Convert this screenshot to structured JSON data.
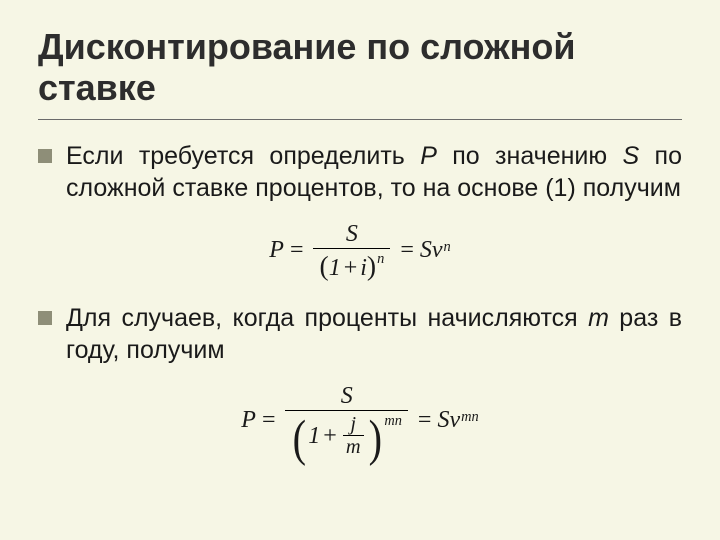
{
  "colors": {
    "background": "#f6f6e5",
    "text": "#1a1a1a",
    "bullet": "#8e8e78",
    "rule": "#6a6a6a"
  },
  "typography": {
    "title_fontsize": 36,
    "body_fontsize": 25,
    "formula_fontsize": 24,
    "title_weight": "bold",
    "body_font": "Arial",
    "formula_font": "Times New Roman"
  },
  "title": "Дисконтирование по сложной ставке",
  "bullets": [
    {
      "pre": "Если требуется определить ",
      "var1": "Р",
      "mid1": " по значению ",
      "var2": "S",
      "post": " по сложной ставке процентов, то на основе (1) получим"
    },
    {
      "pre": "Для случаев, когда проценты начисляются ",
      "var1": "m",
      "post": " раз в году, получим"
    }
  ],
  "formula1": {
    "lhs": "P",
    "eq": "=",
    "num": "S",
    "den_open": "(",
    "den_one": "1",
    "den_plus": "+",
    "den_i": "i",
    "den_close": ")",
    "den_exp": "n",
    "rhs_S": "S",
    "rhs_nu": "ν",
    "rhs_exp": "n"
  },
  "formula2": {
    "lhs": "P",
    "eq": "=",
    "num": "S",
    "den_open": "(",
    "den_one": "1",
    "den_plus": "+",
    "den_j": "j",
    "den_m": "m",
    "den_close": ")",
    "den_exp": "mn",
    "rhs_S": "S",
    "rhs_nu": "ν",
    "rhs_exp": "mn"
  }
}
